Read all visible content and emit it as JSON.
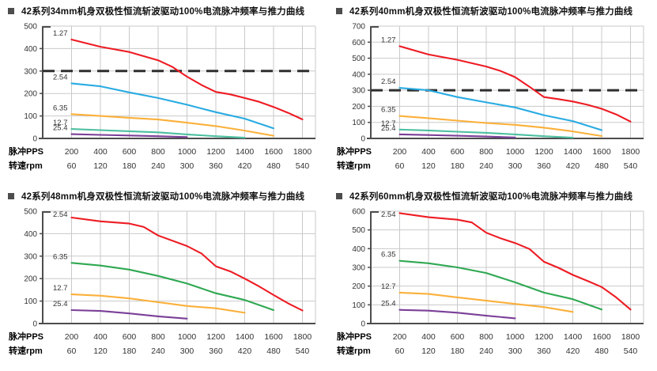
{
  "colors": {
    "grid": "#c9c9c9",
    "axis": "#4d4d4d",
    "dashed_line": "#2e2e2e",
    "tick_text": "#333333",
    "axis_label_text": "#000000",
    "title_text": "#111111",
    "bullet": "#4d4d4d",
    "red": "#ed1c24",
    "cyan": "#29abe2",
    "yellow": "#fbb03b",
    "teal": "#4dbfa0",
    "green": "#2fa852",
    "purple": "#7b3f98"
  },
  "chart_data": [
    {
      "type": "line",
      "title": "42系列34mm机身双极性恒流斩波驱动100%电流脉冲频率与推力曲线",
      "xlabel_row1": "脉冲PPS",
      "xlabel_row2": "转速rpm",
      "x_pps": [
        200,
        400,
        600,
        800,
        1000,
        1200,
        1400,
        1600,
        1800
      ],
      "x_rpm": [
        60,
        120,
        180,
        240,
        300,
        360,
        420,
        480,
        540
      ],
      "ylim": [
        0,
        500
      ],
      "y_step": 100,
      "grid": true,
      "legend_position": "curve-start-labels",
      "dashed_line_y": 300,
      "series": [
        {
          "name": "1.27",
          "color": "#ed1c24",
          "points": [
            [
              200,
              440
            ],
            [
              400,
              408
            ],
            [
              600,
              385
            ],
            [
              800,
              348
            ],
            [
              900,
              318
            ],
            [
              1000,
              275
            ],
            [
              1100,
              238
            ],
            [
              1200,
              207
            ],
            [
              1300,
              196
            ],
            [
              1400,
              180
            ],
            [
              1500,
              163
            ],
            [
              1600,
              140
            ],
            [
              1700,
              114
            ],
            [
              1800,
              85
            ]
          ]
        },
        {
          "name": "2.54",
          "color": "#29abe2",
          "points": [
            [
              200,
              245
            ],
            [
              400,
              232
            ],
            [
              600,
              205
            ],
            [
              800,
              180
            ],
            [
              1000,
              150
            ],
            [
              1200,
              117
            ],
            [
              1400,
              88
            ],
            [
              1600,
              45
            ]
          ]
        },
        {
          "name": "6.35",
          "color": "#fbb03b",
          "points": [
            [
              200,
              108
            ],
            [
              400,
              100
            ],
            [
              600,
              92
            ],
            [
              800,
              84
            ],
            [
              1000,
              70
            ],
            [
              1200,
              55
            ],
            [
              1400,
              35
            ],
            [
              1600,
              12
            ]
          ]
        },
        {
          "name": "12.7",
          "color": "#4dbfa0",
          "points": [
            [
              200,
              42
            ],
            [
              400,
              37
            ],
            [
              600,
              32
            ],
            [
              800,
              27
            ],
            [
              1000,
              18
            ],
            [
              1200,
              10
            ],
            [
              1400,
              3
            ]
          ]
        },
        {
          "name": "25.4",
          "color": "#7b3f98",
          "points": [
            [
              200,
              19
            ],
            [
              400,
              16
            ],
            [
              600,
              13
            ],
            [
              800,
              10
            ],
            [
              1000,
              6
            ]
          ]
        }
      ]
    },
    {
      "type": "line",
      "title": "42系列40mm机身双极性恒流斩波驱动100%电流脉冲频率与推力曲线",
      "xlabel_row1": "脉冲PPS",
      "xlabel_row2": "转速rpm",
      "x_pps": [
        200,
        400,
        600,
        800,
        1000,
        1200,
        1400,
        1600,
        1800
      ],
      "x_rpm": [
        60,
        120,
        180,
        240,
        300,
        360,
        420,
        480,
        540
      ],
      "ylim": [
        0,
        700
      ],
      "y_step": 100,
      "grid": true,
      "legend_position": "curve-start-labels",
      "dashed_line_y": 300,
      "series": [
        {
          "name": "1.27",
          "color": "#ed1c24",
          "points": [
            [
              200,
              575
            ],
            [
              400,
              523
            ],
            [
              600,
              490
            ],
            [
              800,
              448
            ],
            [
              900,
              420
            ],
            [
              1000,
              382
            ],
            [
              1100,
              322
            ],
            [
              1200,
              258
            ],
            [
              1300,
              245
            ],
            [
              1400,
              230
            ],
            [
              1500,
              210
            ],
            [
              1600,
              185
            ],
            [
              1700,
              150
            ],
            [
              1800,
              105
            ]
          ]
        },
        {
          "name": "2.54",
          "color": "#29abe2",
          "points": [
            [
              200,
              315
            ],
            [
              400,
              300
            ],
            [
              600,
              258
            ],
            [
              800,
              225
            ],
            [
              1000,
              193
            ],
            [
              1200,
              145
            ],
            [
              1400,
              108
            ],
            [
              1600,
              52
            ]
          ]
        },
        {
          "name": "6.35",
          "color": "#fbb03b",
          "points": [
            [
              200,
              140
            ],
            [
              400,
              126
            ],
            [
              600,
              111
            ],
            [
              800,
              96
            ],
            [
              1000,
              85
            ],
            [
              1200,
              67
            ],
            [
              1400,
              44
            ],
            [
              1600,
              15
            ]
          ]
        },
        {
          "name": "12.7",
          "color": "#4dbfa0",
          "points": [
            [
              200,
              55
            ],
            [
              400,
              50
            ],
            [
              600,
              42
            ],
            [
              800,
              35
            ],
            [
              1000,
              25
            ],
            [
              1200,
              14
            ],
            [
              1400,
              5
            ]
          ]
        },
        {
          "name": "25.4",
          "color": "#7b3f98",
          "points": [
            [
              200,
              25
            ],
            [
              400,
              21
            ],
            [
              600,
              17
            ],
            [
              800,
              12
            ],
            [
              1000,
              6
            ]
          ]
        }
      ]
    },
    {
      "type": "line",
      "title": "42系列48mm机身双极性恒流斩波驱动100%电流脉冲频率与推力曲线",
      "xlabel_row1": "脉冲PPS",
      "xlabel_row2": "转速rpm",
      "x_pps": [
        200,
        400,
        600,
        800,
        1000,
        1200,
        1400,
        1600,
        1800
      ],
      "x_rpm": [
        60,
        120,
        180,
        240,
        300,
        360,
        420,
        480,
        540
      ],
      "ylim": [
        0,
        500
      ],
      "y_step": 100,
      "grid": true,
      "legend_position": "curve-start-labels",
      "dashed_line_y": null,
      "series": [
        {
          "name": "2.54",
          "color": "#ed1c24",
          "points": [
            [
              200,
              472
            ],
            [
              400,
              455
            ],
            [
              600,
              445
            ],
            [
              700,
              430
            ],
            [
              800,
              392
            ],
            [
              1000,
              345
            ],
            [
              1100,
              312
            ],
            [
              1200,
              255
            ],
            [
              1300,
              232
            ],
            [
              1400,
              200
            ],
            [
              1500,
              165
            ],
            [
              1600,
              127
            ],
            [
              1700,
              90
            ],
            [
              1800,
              58
            ]
          ]
        },
        {
          "name": "6.35",
          "color": "#2fa852",
          "points": [
            [
              200,
              270
            ],
            [
              400,
              258
            ],
            [
              600,
              240
            ],
            [
              800,
              212
            ],
            [
              1000,
              178
            ],
            [
              1200,
              135
            ],
            [
              1400,
              105
            ],
            [
              1600,
              60
            ]
          ]
        },
        {
          "name": "12.7",
          "color": "#fbb03b",
          "points": [
            [
              200,
              130
            ],
            [
              400,
              124
            ],
            [
              600,
              112
            ],
            [
              800,
              95
            ],
            [
              1000,
              78
            ],
            [
              1200,
              68
            ],
            [
              1400,
              48
            ]
          ]
        },
        {
          "name": "25.4",
          "color": "#7b3f98",
          "points": [
            [
              200,
              60
            ],
            [
              400,
              56
            ],
            [
              600,
              45
            ],
            [
              800,
              32
            ],
            [
              1000,
              22
            ]
          ]
        }
      ]
    },
    {
      "type": "line",
      "title": "42系列60mm机身双极性恒流斩波驱动100%电流脉冲频率与推力曲线",
      "xlabel_row1": "脉冲PPS",
      "xlabel_row2": "转速rpm",
      "x_pps": [
        200,
        400,
        600,
        800,
        1000,
        1200,
        1400,
        1600,
        1800
      ],
      "x_rpm": [
        60,
        120,
        180,
        240,
        300,
        360,
        420,
        480,
        540
      ],
      "ylim": [
        0,
        600
      ],
      "y_step": 100,
      "grid": true,
      "legend_position": "curve-start-labels",
      "dashed_line_y": null,
      "series": [
        {
          "name": "2.54",
          "color": "#ed1c24",
          "points": [
            [
              200,
              590
            ],
            [
              400,
              568
            ],
            [
              600,
              555
            ],
            [
              700,
              540
            ],
            [
              800,
              485
            ],
            [
              900,
              455
            ],
            [
              1000,
              430
            ],
            [
              1100,
              398
            ],
            [
              1200,
              330
            ],
            [
              1300,
              298
            ],
            [
              1400,
              260
            ],
            [
              1500,
              228
            ],
            [
              1600,
              195
            ],
            [
              1700,
              140
            ],
            [
              1800,
              75
            ]
          ]
        },
        {
          "name": "6.35",
          "color": "#2fa852",
          "points": [
            [
              200,
              335
            ],
            [
              400,
              322
            ],
            [
              600,
              300
            ],
            [
              800,
              270
            ],
            [
              1000,
              220
            ],
            [
              1200,
              165
            ],
            [
              1400,
              130
            ],
            [
              1600,
              75
            ]
          ]
        },
        {
          "name": "12.7",
          "color": "#fbb03b",
          "points": [
            [
              200,
              165
            ],
            [
              400,
              158
            ],
            [
              600,
              140
            ],
            [
              800,
              122
            ],
            [
              1000,
              105
            ],
            [
              1200,
              88
            ],
            [
              1400,
              62
            ]
          ]
        },
        {
          "name": "25.4",
          "color": "#7b3f98",
          "points": [
            [
              200,
              73
            ],
            [
              400,
              69
            ],
            [
              600,
              58
            ],
            [
              800,
              42
            ],
            [
              1000,
              28
            ]
          ]
        }
      ]
    }
  ]
}
